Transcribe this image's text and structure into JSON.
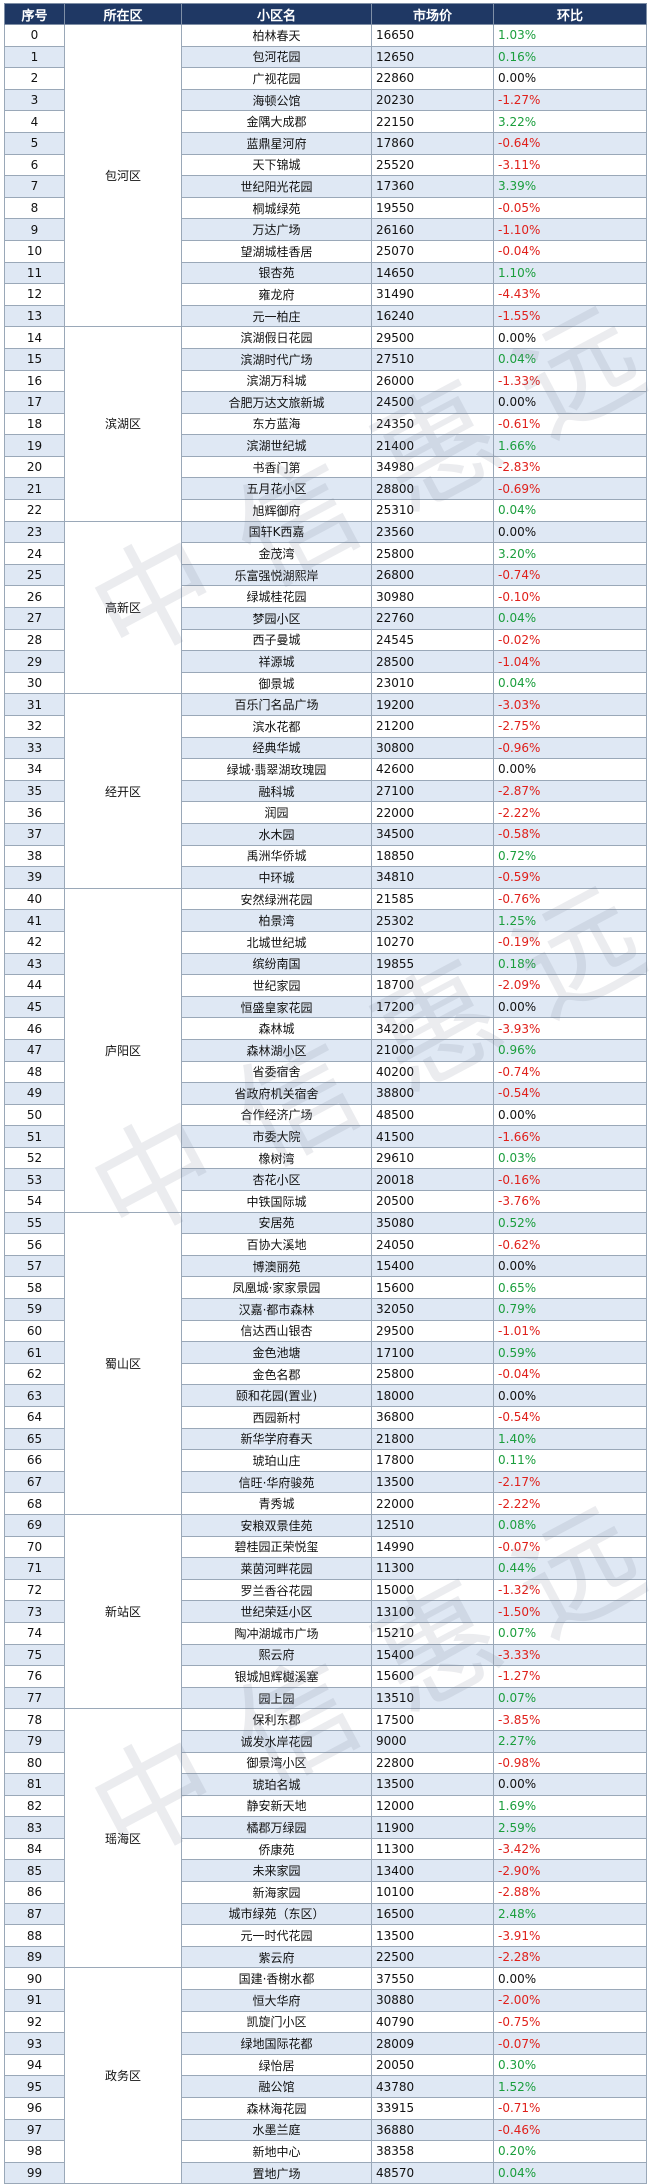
{
  "headers": [
    "序号",
    "所在区",
    "小区名",
    "市场价",
    "环比"
  ],
  "colors": {
    "header_bg": "#1f3864",
    "row_shade": "#dfe8f4",
    "negative": "#e0201b",
    "positive": "#1a9e3c"
  },
  "watermark": "中信惠远",
  "groups": [
    {
      "district": "包河区",
      "rows": [
        [
          "0",
          "柏林春天",
          "16650",
          "1.03%"
        ],
        [
          "1",
          "包河花园",
          "12650",
          "0.16%"
        ],
        [
          "2",
          "广视花园",
          "22860",
          "0.00%"
        ],
        [
          "3",
          "海顿公馆",
          "20230",
          "-1.27%"
        ],
        [
          "4",
          "金隅大成郡",
          "22150",
          "3.22%"
        ],
        [
          "5",
          "蓝鼎星河府",
          "17860",
          "-0.64%"
        ],
        [
          "6",
          "天下锦城",
          "25520",
          "-3.11%"
        ],
        [
          "7",
          "世纪阳光花园",
          "17360",
          "3.39%"
        ],
        [
          "8",
          "桐城绿苑",
          "19550",
          "-0.05%"
        ],
        [
          "9",
          "万达广场",
          "26160",
          "-1.10%"
        ],
        [
          "10",
          "望湖城桂香居",
          "25070",
          "-0.04%"
        ],
        [
          "11",
          "银杏苑",
          "14650",
          "1.10%"
        ],
        [
          "12",
          "雍龙府",
          "31490",
          "-4.43%"
        ],
        [
          "13",
          "元一柏庄",
          "16240",
          "-1.55%"
        ]
      ]
    },
    {
      "district": "滨湖区",
      "rows": [
        [
          "14",
          "滨湖假日花园",
          "29500",
          "0.00%"
        ],
        [
          "15",
          "滨湖时代广场",
          "27510",
          "0.04%"
        ],
        [
          "16",
          "滨湖万科城",
          "26000",
          "-1.33%"
        ],
        [
          "17",
          "合肥万达文旅新城",
          "24500",
          "0.00%"
        ],
        [
          "18",
          "东方蓝海",
          "24350",
          "-0.61%"
        ],
        [
          "19",
          "滨湖世纪城",
          "21400",
          "1.66%"
        ],
        [
          "20",
          "书香门第",
          "34980",
          "-2.83%"
        ],
        [
          "21",
          "五月花小区",
          "28800",
          "-0.69%"
        ],
        [
          "22",
          "旭辉御府",
          "25310",
          "0.04%"
        ]
      ]
    },
    {
      "district": "高新区",
      "rows": [
        [
          "23",
          "国轩K西嘉",
          "23560",
          "0.00%"
        ],
        [
          "24",
          "金茂湾",
          "25800",
          "3.20%"
        ],
        [
          "25",
          "乐富强悦湖熙岸",
          "26800",
          "-0.74%"
        ],
        [
          "26",
          "绿城桂花园",
          "30980",
          "-0.10%"
        ],
        [
          "27",
          "梦园小区",
          "22760",
          "0.04%"
        ],
        [
          "28",
          "西子曼城",
          "24545",
          "-0.02%"
        ],
        [
          "29",
          "祥源城",
          "28500",
          "-1.04%"
        ],
        [
          "30",
          "御景城",
          "23010",
          "0.04%"
        ]
      ]
    },
    {
      "district": "经开区",
      "rows": [
        [
          "31",
          "百乐门名品广场",
          "19200",
          "-3.03%"
        ],
        [
          "32",
          "滨水花都",
          "21200",
          "-2.75%"
        ],
        [
          "33",
          "经典华城",
          "30800",
          "-0.96%"
        ],
        [
          "34",
          "绿城·翡翠湖玫瑰园",
          "42600",
          "0.00%"
        ],
        [
          "35",
          "融科城",
          "27100",
          "-2.87%"
        ],
        [
          "36",
          "润园",
          "22000",
          "-2.22%"
        ],
        [
          "37",
          "水木园",
          "34500",
          "-0.58%"
        ],
        [
          "38",
          "禹洲华侨城",
          "18850",
          "0.72%"
        ],
        [
          "39",
          "中环城",
          "34810",
          "-0.59%"
        ]
      ]
    },
    {
      "district": "庐阳区",
      "rows": [
        [
          "40",
          "安然绿洲花园",
          "21585",
          "-0.76%"
        ],
        [
          "41",
          "柏景湾",
          "25302",
          "1.25%"
        ],
        [
          "42",
          "北城世纪城",
          "10270",
          "-0.19%"
        ],
        [
          "43",
          "缤纷南国",
          "19855",
          "0.18%"
        ],
        [
          "44",
          "世纪家园",
          "18700",
          "-2.09%"
        ],
        [
          "45",
          "恒盛皇家花园",
          "17200",
          "0.00%"
        ],
        [
          "46",
          "森林城",
          "34200",
          "-3.93%"
        ],
        [
          "47",
          "森林湖小区",
          "21000",
          "0.96%"
        ],
        [
          "48",
          "省委宿舍",
          "40200",
          "-0.74%"
        ],
        [
          "49",
          "省政府机关宿舍",
          "38800",
          "-0.54%"
        ],
        [
          "50",
          "合作经济广场",
          "48500",
          "0.00%"
        ],
        [
          "51",
          "市委大院",
          "41500",
          "-1.66%"
        ],
        [
          "52",
          "橡树湾",
          "29610",
          "0.03%"
        ],
        [
          "53",
          "杏花小区",
          "20018",
          "-0.16%"
        ],
        [
          "54",
          "中铁国际城",
          "20500",
          "-3.76%"
        ]
      ]
    },
    {
      "district": "蜀山区",
      "rows": [
        [
          "55",
          "安居苑",
          "35080",
          "0.52%"
        ],
        [
          "56",
          "百协大溪地",
          "24050",
          "-0.62%"
        ],
        [
          "57",
          "博澳丽苑",
          "15400",
          "0.00%"
        ],
        [
          "58",
          "凤凰城·家家景园",
          "15600",
          "0.65%"
        ],
        [
          "59",
          "汉嘉·都市森林",
          "32050",
          "0.79%"
        ],
        [
          "60",
          "信达西山银杏",
          "29500",
          "-1.01%"
        ],
        [
          "61",
          "金色池塘",
          "17100",
          "0.59%"
        ],
        [
          "62",
          "金色名郡",
          "25800",
          "-0.04%"
        ],
        [
          "63",
          "颐和花园(置业)",
          "18000",
          "0.00%"
        ],
        [
          "64",
          "西园新村",
          "36800",
          "-0.54%"
        ],
        [
          "65",
          "新华学府春天",
          "21800",
          "1.40%"
        ],
        [
          "66",
          "琥珀山庄",
          "17800",
          "0.11%"
        ],
        [
          "67",
          "信旺·华府骏苑",
          "13500",
          "-2.17%"
        ],
        [
          "68",
          "青秀城",
          "22000",
          "-2.22%"
        ]
      ]
    },
    {
      "district": "新站区",
      "rows": [
        [
          "69",
          "安粮双景佳苑",
          "12510",
          "0.08%"
        ],
        [
          "70",
          "碧桂园正荣悦玺",
          "14990",
          "-0.07%"
        ],
        [
          "71",
          "莱茵河畔花园",
          "11300",
          "0.44%"
        ],
        [
          "72",
          "罗兰香谷花园",
          "15000",
          "-1.32%"
        ],
        [
          "73",
          "世纪荣廷小区",
          "13100",
          "-1.50%"
        ],
        [
          "74",
          "陶冲湖城市广场",
          "15210",
          "0.07%"
        ],
        [
          "75",
          "熙云府",
          "15400",
          "-3.33%"
        ],
        [
          "76",
          "银城旭辉樾溪塞",
          "15600",
          "-1.27%"
        ],
        [
          "77",
          "园上园",
          "13510",
          "0.07%"
        ]
      ]
    },
    {
      "district": "瑶海区",
      "rows": [
        [
          "78",
          "保利东郡",
          "17500",
          "-3.85%"
        ],
        [
          "79",
          "诚发水岸花园",
          "9000",
          "2.27%"
        ],
        [
          "80",
          "御景湾小区",
          "22800",
          "-0.98%"
        ],
        [
          "81",
          "琥珀名城",
          "13500",
          "0.00%"
        ],
        [
          "82",
          "静安新天地",
          "12000",
          "1.69%"
        ],
        [
          "83",
          "橘郡万绿园",
          "11900",
          "2.59%"
        ],
        [
          "84",
          "侨康苑",
          "11300",
          "-3.42%"
        ],
        [
          "85",
          "未来家园",
          "13400",
          "-2.90%"
        ],
        [
          "86",
          "新海家园",
          "10100",
          "-2.88%"
        ],
        [
          "87",
          "城市绿苑（东区）",
          "16500",
          "2.48%"
        ],
        [
          "88",
          "元一时代花园",
          "13500",
          "-3.91%"
        ],
        [
          "89",
          "紫云府",
          "22500",
          "-2.28%"
        ]
      ]
    },
    {
      "district": "政务区",
      "rows": [
        [
          "90",
          "国建·香榭水都",
          "37550",
          "0.00%"
        ],
        [
          "91",
          "恒大华府",
          "30880",
          "-2.00%"
        ],
        [
          "92",
          "凯旋门小区",
          "40790",
          "-0.75%"
        ],
        [
          "93",
          "绿地国际花都",
          "28009",
          "-0.07%"
        ],
        [
          "94",
          "绿怡居",
          "20050",
          "0.30%"
        ],
        [
          "95",
          "融公馆",
          "43780",
          "1.52%"
        ],
        [
          "96",
          "森林海花园",
          "33915",
          "-0.71%"
        ],
        [
          "97",
          "水墨兰庭",
          "36880",
          "-0.46%"
        ],
        [
          "98",
          "新地中心",
          "38358",
          "0.20%"
        ],
        [
          "99",
          "置地广场",
          "48570",
          "0.04%"
        ]
      ]
    }
  ]
}
